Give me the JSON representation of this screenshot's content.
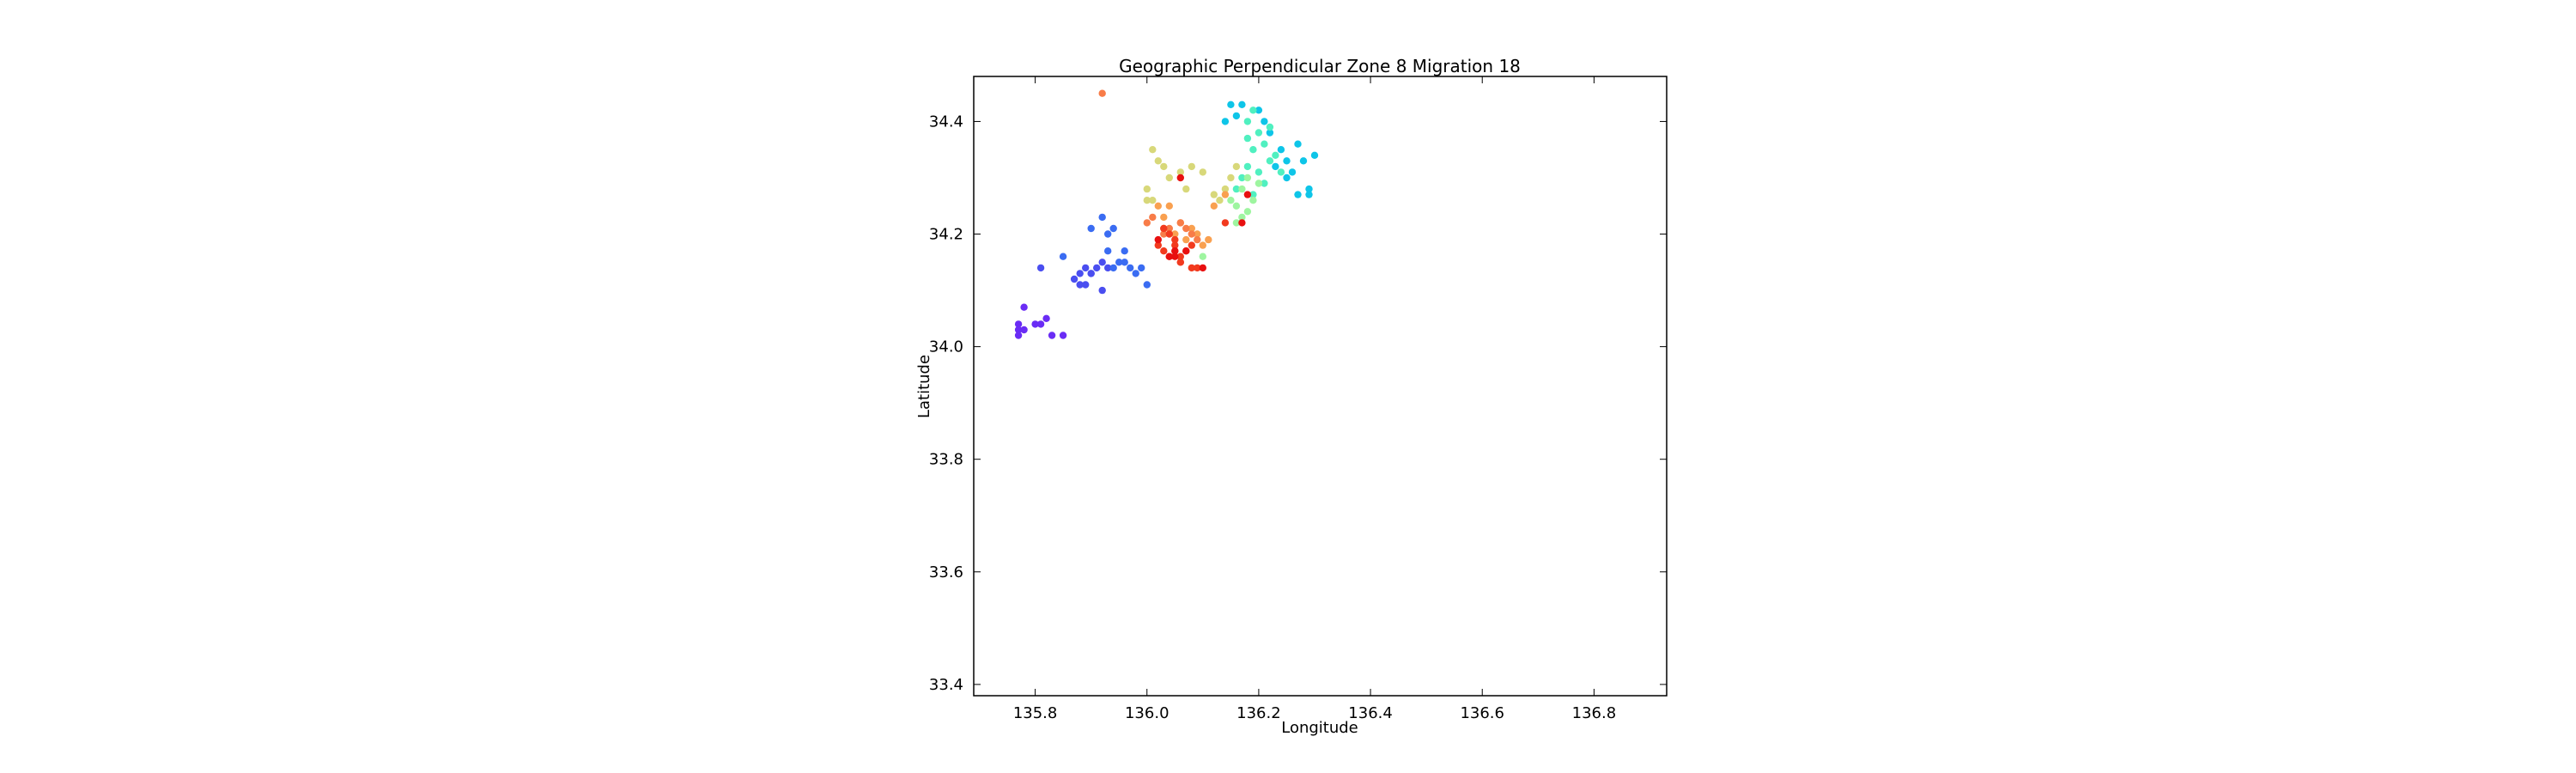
{
  "chart_data": {
    "type": "scatter",
    "title": "Geographic Perpendicular Zone 8 Migration 18",
    "xlabel": "Longitude",
    "ylabel": "Latitude",
    "xlim": [
      135.69,
      136.93
    ],
    "ylim": [
      33.38,
      34.48
    ],
    "xticks": [
      135.8,
      136.0,
      136.2,
      136.4,
      136.6,
      136.8
    ],
    "xtick_labels": [
      "135.8",
      "136.0",
      "136.2",
      "136.4",
      "136.6",
      "136.8"
    ],
    "yticks": [
      33.4,
      33.6,
      33.8,
      34.0,
      34.2,
      34.4
    ],
    "ytick_labels": [
      "33.4",
      "33.6",
      "33.8",
      "34.0",
      "34.2",
      "34.4"
    ],
    "grid": false,
    "colormap": "rainbow",
    "series": [
      {
        "color": "#6a2cf5",
        "x": [
          135.77,
          135.78,
          135.77,
          135.78,
          135.81,
          135.82,
          135.83,
          135.85,
          135.77,
          135.8
        ],
        "y": [
          34.02,
          34.03,
          34.04,
          34.07,
          34.04,
          34.05,
          34.02,
          34.02,
          34.03,
          34.04
        ]
      },
      {
        "color": "#4a4ef0",
        "x": [
          135.81,
          135.87,
          135.88,
          135.89,
          135.89,
          135.9,
          135.91,
          135.92,
          135.93,
          135.88,
          135.9,
          135.92
        ],
        "y": [
          34.14,
          34.12,
          34.13,
          34.14,
          34.11,
          34.13,
          34.14,
          34.15,
          34.14,
          34.11,
          34.13,
          34.1
        ]
      },
      {
        "color": "#3a6cf2",
        "x": [
          135.85,
          135.9,
          135.92,
          135.94,
          135.93,
          135.95,
          135.96,
          135.97,
          135.98,
          135.99,
          135.96,
          136.0,
          135.94,
          135.93
        ],
        "y": [
          34.16,
          34.21,
          34.23,
          34.21,
          34.17,
          34.15,
          34.17,
          34.14,
          34.13,
          34.14,
          34.15,
          34.11,
          34.14,
          34.2
        ]
      },
      {
        "color": "#0ec5e8",
        "x": [
          136.14,
          136.15,
          136.16,
          136.17,
          136.2,
          136.22,
          136.24,
          136.25,
          136.26,
          136.27,
          136.28,
          136.29,
          136.3,
          136.25,
          136.23,
          136.21,
          136.27,
          136.29
        ],
        "y": [
          34.4,
          34.43,
          34.41,
          34.43,
          34.42,
          34.38,
          34.35,
          34.33,
          34.31,
          34.36,
          34.33,
          34.28,
          34.34,
          34.3,
          34.32,
          34.4,
          34.27,
          34.27
        ]
      },
      {
        "color": "#50f0c0",
        "x": [
          136.18,
          136.19,
          136.2,
          136.21,
          136.22,
          136.19,
          136.18,
          136.17,
          136.16,
          136.2,
          136.23,
          136.21,
          136.19,
          136.24,
          136.22,
          136.18
        ],
        "y": [
          34.4,
          34.42,
          34.38,
          34.36,
          34.33,
          34.35,
          34.32,
          34.3,
          34.28,
          34.31,
          34.34,
          34.29,
          34.27,
          34.31,
          34.39,
          34.37
        ]
      },
      {
        "color": "#9ef5a0",
        "x": [
          136.15,
          136.16,
          136.17,
          136.18,
          136.17,
          136.16,
          136.19,
          136.18,
          136.1,
          136.2
        ],
        "y": [
          34.26,
          34.25,
          34.23,
          34.24,
          34.28,
          34.22,
          34.26,
          34.3,
          34.16,
          34.29
        ]
      },
      {
        "color": "#d8d87a",
        "x": [
          136.0,
          136.01,
          136.02,
          136.03,
          136.0,
          136.04,
          136.06,
          136.08,
          136.1,
          136.13,
          136.14,
          136.15,
          136.16,
          136.12,
          136.07,
          136.01
        ],
        "y": [
          34.28,
          34.35,
          34.33,
          34.32,
          34.26,
          34.3,
          34.31,
          34.32,
          34.31,
          34.26,
          34.28,
          34.3,
          34.32,
          34.27,
          34.28,
          34.26
        ]
      },
      {
        "color": "#f9a050",
        "x": [
          136.02,
          136.03,
          136.04,
          136.05,
          136.07,
          136.09,
          136.1,
          136.11,
          136.12,
          136.08,
          136.06,
          136.03,
          136.14
        ],
        "y": [
          34.25,
          34.23,
          34.25,
          34.2,
          34.19,
          34.2,
          34.18,
          34.19,
          34.25,
          34.21,
          34.22,
          34.21,
          34.27
        ]
      },
      {
        "color": "#f87c48",
        "x": [
          135.92,
          136.0,
          136.01,
          136.04,
          136.06,
          136.07,
          136.08,
          136.09,
          136.05,
          136.03
        ],
        "y": [
          34.45,
          34.22,
          34.23,
          34.21,
          34.22,
          34.21,
          34.2,
          34.19,
          34.17,
          34.2
        ]
      },
      {
        "color": "#f23a1e",
        "x": [
          136.02,
          136.03,
          136.04,
          136.05,
          136.06,
          136.07,
          136.08,
          136.05,
          136.04,
          136.06,
          136.03,
          136.08,
          136.09,
          136.06,
          136.14
        ],
        "y": [
          34.18,
          34.17,
          34.16,
          34.19,
          34.15,
          34.17,
          34.14,
          34.18,
          34.2,
          34.16,
          34.21,
          34.18,
          34.14,
          34.15,
          34.22
        ]
      },
      {
        "color": "#e81010",
        "x": [
          136.05,
          136.06,
          136.17,
          136.18,
          136.07,
          136.04,
          136.02,
          136.05,
          136.1
        ],
        "y": [
          34.17,
          34.3,
          34.22,
          34.27,
          34.17,
          34.16,
          34.19,
          34.16,
          34.14
        ]
      }
    ]
  }
}
